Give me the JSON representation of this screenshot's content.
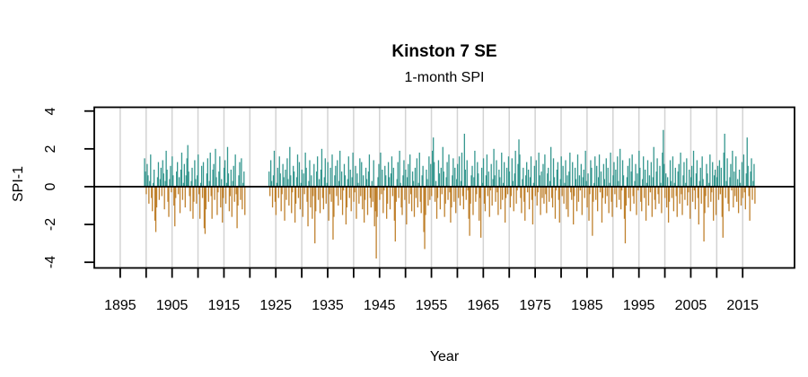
{
  "chart_data": {
    "type": "bar",
    "title": "Kinston 7 SE",
    "subtitle": "1-month SPI",
    "xlabel": "Year",
    "ylabel": "SPI-1",
    "xlim": [
      1890,
      2025
    ],
    "ylim": [
      -4.3,
      4.2
    ],
    "x_major_ticks": [
      1895,
      1905,
      1915,
      1925,
      1935,
      1945,
      1955,
      1965,
      1975,
      1985,
      1995,
      2005,
      2015
    ],
    "x_minor_ticks": [
      1895,
      1900,
      1905,
      1910,
      1915,
      1920,
      1925,
      1930,
      1935,
      1940,
      1945,
      1950,
      1955,
      1960,
      1965,
      1970,
      1975,
      1980,
      1985,
      1990,
      1995,
      2000,
      2005,
      2010,
      2015
    ],
    "y_ticks": [
      4,
      2,
      0,
      -2,
      -4
    ],
    "grid": {
      "vertical_lines_at_minor_ticks": true,
      "horizontal": false,
      "color": "#D3D3D3"
    },
    "zero_line": true,
    "colors": {
      "positive_bars": "#35978F",
      "negative_bars": "#BF812D",
      "axis": "#000000",
      "background": "#FFFFFF"
    },
    "value_scale": 0.1,
    "step_years": 0.16667,
    "segments": [
      {
        "name": "pre-gap 1900-1919",
        "start_year": 1899.7,
        "values_x10": [
          15,
          8,
          -4,
          12,
          6,
          -9,
          3,
          17,
          -6,
          -13,
          2,
          9,
          -18,
          -24,
          -11,
          5,
          13,
          -7,
          4,
          10,
          -5,
          14,
          7,
          -12,
          3,
          19,
          9,
          -8,
          -16,
          4,
          11,
          -3,
          16,
          6,
          -10,
          -21,
          -6,
          8,
          13,
          -4,
          5,
          -14,
          9,
          18,
          -7,
          2,
          12,
          -11,
          6,
          15,
          22,
          8,
          -5,
          -13,
          3,
          10,
          -17,
          -8,
          14,
          4,
          -9,
          6,
          17,
          -4,
          -17,
          2,
          11,
          -6,
          13,
          -22,
          -25,
          -12,
          7,
          15,
          -8,
          3,
          18,
          -5,
          -17,
          9,
          12,
          -7,
          20,
          5,
          -15,
          -3,
          8,
          16,
          -11,
          4,
          -19,
          -6,
          10,
          14,
          -9,
          2,
          21,
          7,
          -13,
          -5,
          9,
          -16,
          3,
          11,
          -8,
          17,
          -4,
          -22,
          -10,
          6,
          13,
          -7,
          15,
          -12,
          2,
          8,
          -15
        ]
      },
      {
        "name": "post-gap 1923-2017",
        "start_year": 1923.7,
        "values_x10": [
          8,
          -5,
          14,
          3,
          -11,
          6,
          19,
          -8,
          -15,
          2,
          10,
          -6,
          16,
          7,
          -13,
          -4,
          12,
          5,
          -18,
          9,
          -7,
          15,
          4,
          -10,
          21,
          6,
          -14,
          -3,
          11,
          8,
          -19,
          -9,
          5,
          17,
          -6,
          13,
          -12,
          2,
          9,
          -16,
          7,
          -4,
          18,
          10,
          -8,
          -21,
          3,
          14,
          -11,
          6,
          -17,
          -5,
          12,
          -30,
          -13,
          8,
          16,
          -7,
          4,
          -14,
          9,
          20,
          -6,
          -12,
          5,
          15,
          -9,
          2,
          13,
          -18,
          -4,
          10,
          -8,
          17,
          -28,
          -16,
          6,
          11,
          -5,
          14,
          -10,
          3,
          19,
          -7,
          8,
          -15,
          -2,
          12,
          6,
          -20,
          -11,
          4,
          16,
          -6,
          9,
          -13,
          5,
          18,
          -8,
          -3,
          11,
          -17,
          7,
          2,
          -9,
          15,
          -5,
          13,
          -12,
          6,
          -19,
          -7,
          10,
          4,
          -15,
          8,
          17,
          -6,
          -11,
          3,
          -8,
          14,
          -21,
          -13,
          -38,
          -16,
          5,
          12,
          -7,
          18,
          -4,
          9,
          -14,
          -2,
          11,
          6,
          -17,
          -9,
          13,
          5,
          -12,
          7,
          16,
          -5,
          10,
          -18,
          -29,
          -8,
          4,
          13,
          -6,
          19,
          2,
          -11,
          -15,
          6,
          14,
          -7,
          9,
          -20,
          5,
          12,
          -9,
          17,
          -4,
          -13,
          8,
          3,
          -16,
          10,
          -6,
          15,
          -11,
          2,
          18,
          -8,
          -14,
          6,
          11,
          -24,
          -33,
          -15,
          9,
          4,
          -10,
          16,
          -7,
          12,
          -5,
          19,
          26,
          13,
          -8,
          3,
          -17,
          -6,
          14,
          7,
          -12,
          10,
          -4,
          21,
          8,
          -16,
          -9,
          5,
          13,
          -7,
          17,
          -3,
          -19,
          -11,
          6,
          15,
          -8,
          10,
          -14,
          4,
          12,
          -6,
          16,
          -10,
          3,
          18,
          -5,
          -12,
          28,
          9,
          -7,
          14,
          -2,
          -17,
          -26,
          -9,
          6,
          11,
          -15,
          5,
          19,
          -8,
          -4,
          13,
          7,
          -18,
          -6,
          -27,
          10,
          2,
          15,
          -9,
          -13,
          6,
          17,
          -5,
          8,
          -16,
          -2,
          12,
          -10,
          4,
          20,
          6,
          -8,
          14,
          -3,
          -15,
          9,
          5,
          -12,
          18,
          -7,
          2,
          13,
          -19,
          -6,
          10,
          -4,
          16,
          8,
          -11,
          -5,
          15,
          3,
          -13,
          7,
          19,
          -9,
          -2,
          12,
          25,
          17,
          -6,
          -14,
          4,
          10,
          -8,
          -18,
          6,
          13,
          -3,
          9,
          -12,
          5,
          16,
          -7,
          -20,
          2,
          11,
          -5,
          14,
          -10,
          -3,
          18,
          6,
          -15,
          8,
          -6,
          12,
          -9,
          17,
          -4,
          -14,
          7,
          10,
          -8,
          3,
          21,
          -6,
          -11,
          15,
          5,
          -17,
          -2,
          9,
          13,
          -7,
          -19,
          4,
          16,
          -5,
          11,
          -9,
          2,
          14,
          -12,
          6,
          -16,
          8,
          18,
          -3,
          -7,
          13,
          -20,
          -5,
          10,
          4,
          -13,
          17,
          -8,
          6,
          -2,
          12,
          -15,
          5,
          9,
          -6,
          19,
          3,
          -11,
          7,
          -18,
          -4,
          14,
          10,
          -26,
          -8,
          2,
          16,
          -7,
          11,
          -13,
          5,
          17,
          -3,
          8,
          -19,
          -6,
          12,
          4,
          -9,
          15,
          -5,
          10,
          -14,
          2,
          18,
          -8,
          -16,
          6,
          13,
          -4,
          9,
          -11,
          16,
          3,
          -7,
          20,
          -12,
          -2,
          14,
          6,
          -17,
          -30,
          -10,
          5,
          11,
          -6,
          15,
          -13,
          8,
          17,
          -5,
          -9,
          3,
          12,
          -15,
          7,
          -2,
          19,
          10,
          -8,
          -13,
          4,
          16,
          -6,
          9,
          -18,
          2,
          14,
          -10,
          6,
          -3,
          13,
          -16,
          5,
          21,
          -7,
          -12,
          8,
          15,
          -4,
          -9,
          11,
          2,
          -14,
          18,
          30,
          12,
          -6,
          7,
          -11,
          5,
          -19,
          -8,
          14,
          3,
          -6,
          16,
          -13,
          2,
          10,
          -5,
          -16,
          8,
          12,
          -9,
          18,
          -4,
          -15,
          6,
          13,
          -7,
          2,
          15,
          -10,
          -3,
          9,
          -17,
          5,
          11,
          -8,
          19,
          -2,
          -12,
          7,
          14,
          -6,
          -20,
          3,
          10,
          -9,
          16,
          4,
          -29,
          -14,
          -5,
          12,
          7,
          -11,
          2,
          17,
          -8,
          -3,
          13,
          -18,
          6,
          9,
          -15,
          5,
          11,
          -7,
          14,
          -4,
          10,
          -16,
          -27,
          18,
          28,
          -6,
          3,
          15,
          -9,
          -13,
          5,
          12,
          -2,
          19,
          -11,
          8,
          -5,
          16,
          -8,
          4,
          -14,
          9,
          2,
          -10,
          13,
          -6,
          17,
          -3,
          -12,
          7,
          26,
          11,
          -5,
          -18,
          8,
          15,
          -7,
          3,
          12,
          -9
        ]
      }
    ]
  }
}
